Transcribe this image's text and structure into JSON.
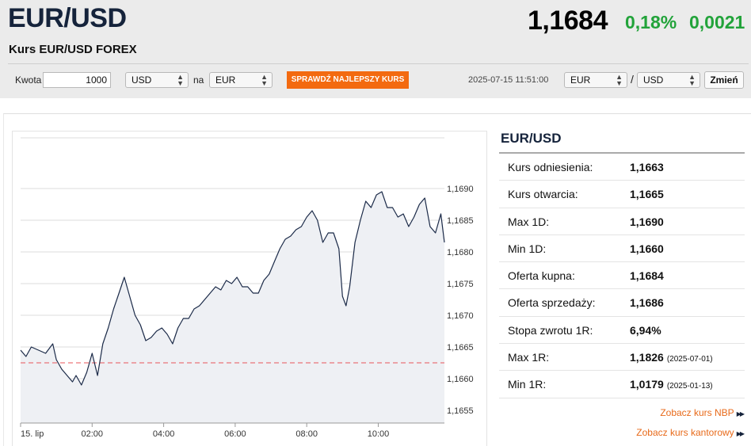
{
  "header": {
    "pair": "EUR/USD",
    "subtitle": "Kurs EUR/USD FOREX",
    "price": "1,1684",
    "change_pct": "0,18%",
    "change_abs": "0,0021",
    "accent_color": "#22a33a"
  },
  "converter": {
    "amount_label": "Kwota",
    "amount_value": "1000",
    "from_currency": "USD",
    "to_label": "na",
    "to_currency": "EUR",
    "best_rate_button": "SPRAWDŹ NAJLEPSZY KURS",
    "timestamp": "2025-07-15 11:51:00",
    "pair_left": "EUR",
    "pair_sep": "/",
    "pair_right": "USD",
    "change_button": "Zmień",
    "button_color": "#f36a10"
  },
  "chart_data": {
    "type": "line",
    "ylim": [
      1.1653,
      1.1698
    ],
    "y_ticks": [
      {
        "value": 1.1655,
        "label": "1,1655"
      },
      {
        "value": 1.166,
        "label": "1,1660"
      },
      {
        "value": 1.1665,
        "label": "1,1665"
      },
      {
        "value": 1.167,
        "label": "1,1670"
      },
      {
        "value": 1.1675,
        "label": "1,1675"
      },
      {
        "value": 1.168,
        "label": "1,1680"
      },
      {
        "value": 1.1685,
        "label": "1,1685"
      },
      {
        "value": 1.169,
        "label": "1,1690"
      }
    ],
    "x_ticks": [
      {
        "t": 0,
        "label": "15. lip"
      },
      {
        "t": 2,
        "label": "02:00"
      },
      {
        "t": 4,
        "label": "04:00"
      },
      {
        "t": 6,
        "label": "06:00"
      },
      {
        "t": 8,
        "label": "08:00"
      },
      {
        "t": 10,
        "label": "10:00"
      }
    ],
    "xlim": [
      0,
      11.85
    ],
    "reference_line": 1.16625,
    "series": [
      {
        "line_color": "#1b2a48",
        "points": [
          [
            0.0,
            1.16645
          ],
          [
            0.15,
            1.16635
          ],
          [
            0.3,
            1.1665
          ],
          [
            0.5,
            1.16645
          ],
          [
            0.7,
            1.1664
          ],
          [
            0.9,
            1.16655
          ],
          [
            1.0,
            1.1663
          ],
          [
            1.15,
            1.16615
          ],
          [
            1.3,
            1.16605
          ],
          [
            1.45,
            1.16595
          ],
          [
            1.55,
            1.16605
          ],
          [
            1.7,
            1.1659
          ],
          [
            1.85,
            1.1661
          ],
          [
            2.0,
            1.1664
          ],
          [
            2.15,
            1.16605
          ],
          [
            2.3,
            1.16655
          ],
          [
            2.45,
            1.1668
          ],
          [
            2.6,
            1.1671
          ],
          [
            2.75,
            1.16735
          ],
          [
            2.9,
            1.1676
          ],
          [
            3.05,
            1.1673
          ],
          [
            3.2,
            1.167
          ],
          [
            3.35,
            1.16685
          ],
          [
            3.5,
            1.1666
          ],
          [
            3.65,
            1.16665
          ],
          [
            3.8,
            1.16675
          ],
          [
            3.95,
            1.1668
          ],
          [
            4.1,
            1.1667
          ],
          [
            4.25,
            1.16655
          ],
          [
            4.4,
            1.1668
          ],
          [
            4.55,
            1.16695
          ],
          [
            4.7,
            1.16695
          ],
          [
            4.85,
            1.1671
          ],
          [
            5.0,
            1.16715
          ],
          [
            5.15,
            1.16725
          ],
          [
            5.3,
            1.16735
          ],
          [
            5.45,
            1.16745
          ],
          [
            5.6,
            1.1674
          ],
          [
            5.75,
            1.16755
          ],
          [
            5.9,
            1.1675
          ],
          [
            6.05,
            1.1676
          ],
          [
            6.2,
            1.16745
          ],
          [
            6.35,
            1.16745
          ],
          [
            6.5,
            1.16735
          ],
          [
            6.65,
            1.16735
          ],
          [
            6.8,
            1.16755
          ],
          [
            6.95,
            1.16765
          ],
          [
            7.1,
            1.16785
          ],
          [
            7.25,
            1.16805
          ],
          [
            7.4,
            1.1682
          ],
          [
            7.55,
            1.16825
          ],
          [
            7.7,
            1.16835
          ],
          [
            7.85,
            1.1684
          ],
          [
            8.0,
            1.16855
          ],
          [
            8.15,
            1.16865
          ],
          [
            8.3,
            1.1685
          ],
          [
            8.45,
            1.16815
          ],
          [
            8.6,
            1.1683
          ],
          [
            8.75,
            1.1683
          ],
          [
            8.9,
            1.16805
          ],
          [
            9.0,
            1.1673
          ],
          [
            9.1,
            1.16715
          ],
          [
            9.2,
            1.16745
          ],
          [
            9.35,
            1.16815
          ],
          [
            9.5,
            1.1685
          ],
          [
            9.65,
            1.1688
          ],
          [
            9.8,
            1.1687
          ],
          [
            9.95,
            1.1689
          ],
          [
            10.1,
            1.16895
          ],
          [
            10.25,
            1.1687
          ],
          [
            10.4,
            1.1687
          ],
          [
            10.55,
            1.16855
          ],
          [
            10.7,
            1.1686
          ],
          [
            10.85,
            1.1684
          ],
          [
            11.0,
            1.16855
          ],
          [
            11.15,
            1.16875
          ],
          [
            11.3,
            1.16885
          ],
          [
            11.45,
            1.1684
          ],
          [
            11.6,
            1.1683
          ],
          [
            11.75,
            1.1686
          ],
          [
            11.85,
            1.16815
          ]
        ]
      }
    ]
  },
  "stats": {
    "title": "EUR/USD",
    "rows": [
      {
        "label": "Kurs odniesienia:",
        "value": "1,1663",
        "date": ""
      },
      {
        "label": "Kurs otwarcia:",
        "value": "1,1665",
        "date": ""
      },
      {
        "label": "Max 1D:",
        "value": "1,1690",
        "date": ""
      },
      {
        "label": "Min 1D:",
        "value": "1,1660",
        "date": ""
      },
      {
        "label": "Oferta kupna:",
        "value": "1,1684",
        "date": ""
      },
      {
        "label": "Oferta sprzedaży:",
        "value": "1,1686",
        "date": ""
      },
      {
        "label": "Stopa zwrotu 1R:",
        "value": "6,94%",
        "date": ""
      },
      {
        "label": "Max 1R:",
        "value": "1,1826",
        "date": "(2025-07-01)"
      },
      {
        "label": "Min 1R:",
        "value": "1,0179",
        "date": "(2025-01-13)"
      }
    ],
    "link_nbp": "Zobacz kurs NBP",
    "link_kantor": "Zobacz kurs kantorowy",
    "link_color": "#e86a1a"
  }
}
